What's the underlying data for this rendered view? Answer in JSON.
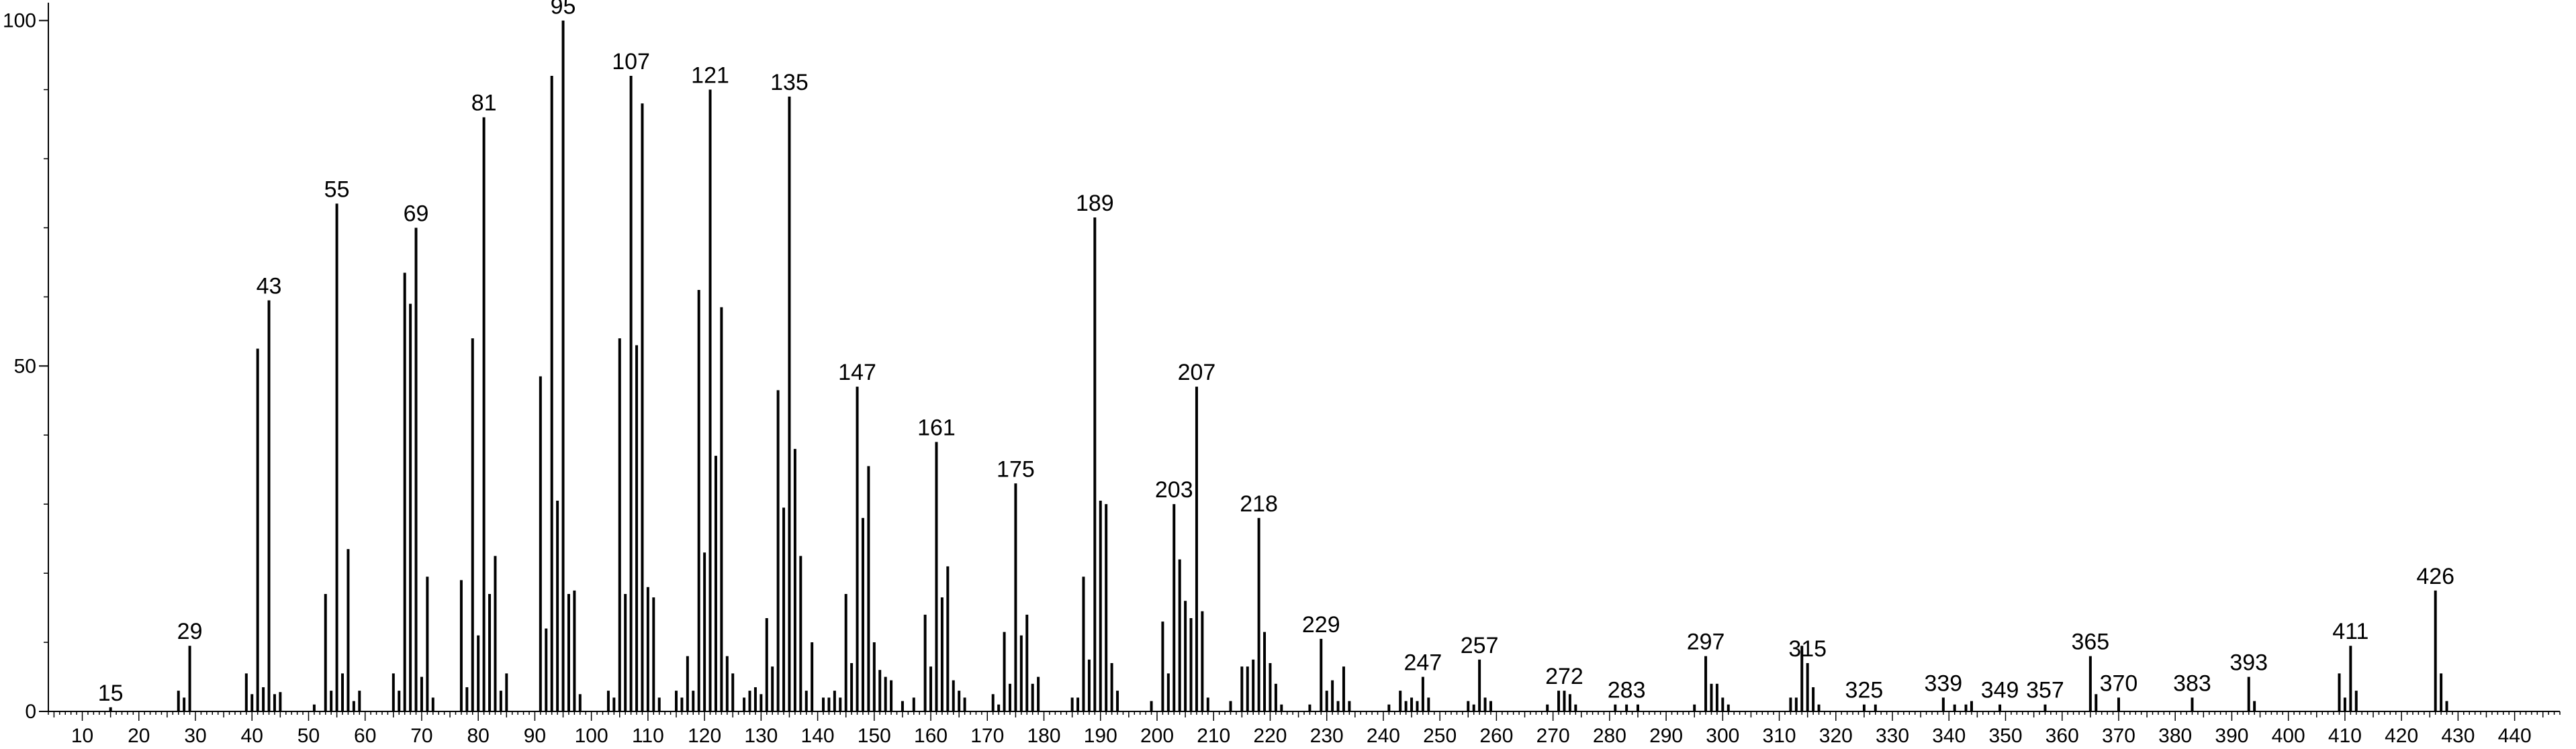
{
  "chart_data": {
    "type": "bar",
    "title": "",
    "xlabel": "",
    "ylabel": "",
    "xlim": [
      4,
      448
    ],
    "ylim": [
      0,
      102
    ],
    "x_ticks": [
      10,
      20,
      30,
      40,
      50,
      60,
      70,
      80,
      90,
      100,
      110,
      120,
      130,
      140,
      150,
      160,
      170,
      180,
      190,
      200,
      210,
      220,
      230,
      240,
      250,
      260,
      270,
      280,
      290,
      300,
      310,
      320,
      330,
      340,
      350,
      360,
      370,
      380,
      390,
      400,
      410,
      420,
      430,
      440
    ],
    "x_tick_labels": [
      "10",
      "20",
      "30",
      "40",
      "50",
      "60",
      "70",
      "80",
      "90",
      "100",
      "110",
      "120",
      "130",
      "140",
      "150",
      "160",
      "170",
      "180",
      "190",
      "200",
      "210",
      "220",
      "230",
      "240",
      "250",
      "260",
      "270",
      "280",
      "290",
      "300",
      "310",
      "320",
      "330",
      "340",
      "350",
      "360",
      "370",
      "380",
      "390",
      "400",
      "410",
      "420",
      "430",
      "440"
    ],
    "y_ticks": [
      0,
      50,
      100
    ],
    "y_tick_labels": [
      "0",
      "50",
      "100"
    ],
    "grid": false,
    "peaks": [
      {
        "x": 15,
        "y": 0.6
      },
      {
        "x": 27,
        "y": 3
      },
      {
        "x": 28,
        "y": 2
      },
      {
        "x": 29,
        "y": 9.5
      },
      {
        "x": 39,
        "y": 5.5
      },
      {
        "x": 40,
        "y": 2.5
      },
      {
        "x": 41,
        "y": 52.5
      },
      {
        "x": 42,
        "y": 3.5
      },
      {
        "x": 43,
        "y": 59.5
      },
      {
        "x": 44,
        "y": 2.5
      },
      {
        "x": 45,
        "y": 2.8
      },
      {
        "x": 51,
        "y": 1
      },
      {
        "x": 53,
        "y": 17
      },
      {
        "x": 54,
        "y": 3
      },
      {
        "x": 55,
        "y": 73.5
      },
      {
        "x": 56,
        "y": 5.5
      },
      {
        "x": 57,
        "y": 23.5
      },
      {
        "x": 58,
        "y": 1.5
      },
      {
        "x": 59,
        "y": 3
      },
      {
        "x": 65,
        "y": 5.5
      },
      {
        "x": 66,
        "y": 3
      },
      {
        "x": 67,
        "y": 63.5
      },
      {
        "x": 68,
        "y": 59
      },
      {
        "x": 69,
        "y": 70
      },
      {
        "x": 70,
        "y": 5
      },
      {
        "x": 71,
        "y": 19.5
      },
      {
        "x": 72,
        "y": 2
      },
      {
        "x": 77,
        "y": 19
      },
      {
        "x": 78,
        "y": 3.5
      },
      {
        "x": 79,
        "y": 54
      },
      {
        "x": 80,
        "y": 11
      },
      {
        "x": 81,
        "y": 86
      },
      {
        "x": 82,
        "y": 17
      },
      {
        "x": 83,
        "y": 22.5
      },
      {
        "x": 84,
        "y": 3
      },
      {
        "x": 85,
        "y": 5.5
      },
      {
        "x": 91,
        "y": 48.5
      },
      {
        "x": 92,
        "y": 12
      },
      {
        "x": 93,
        "y": 92
      },
      {
        "x": 94,
        "y": 30.5
      },
      {
        "x": 95,
        "y": 100
      },
      {
        "x": 96,
        "y": 17
      },
      {
        "x": 97,
        "y": 17.5
      },
      {
        "x": 98,
        "y": 2.5
      },
      {
        "x": 103,
        "y": 3
      },
      {
        "x": 104,
        "y": 2
      },
      {
        "x": 105,
        "y": 54
      },
      {
        "x": 106,
        "y": 17
      },
      {
        "x": 107,
        "y": 92
      },
      {
        "x": 108,
        "y": 53
      },
      {
        "x": 109,
        "y": 88
      },
      {
        "x": 110,
        "y": 18
      },
      {
        "x": 111,
        "y": 16.5
      },
      {
        "x": 112,
        "y": 2
      },
      {
        "x": 115,
        "y": 3
      },
      {
        "x": 116,
        "y": 2
      },
      {
        "x": 117,
        "y": 8
      },
      {
        "x": 118,
        "y": 3
      },
      {
        "x": 119,
        "y": 61
      },
      {
        "x": 120,
        "y": 23
      },
      {
        "x": 121,
        "y": 90
      },
      {
        "x": 122,
        "y": 37
      },
      {
        "x": 123,
        "y": 58.5
      },
      {
        "x": 124,
        "y": 8
      },
      {
        "x": 125,
        "y": 5.5
      },
      {
        "x": 127,
        "y": 2
      },
      {
        "x": 128,
        "y": 3
      },
      {
        "x": 129,
        "y": 3.5
      },
      {
        "x": 130,
        "y": 2.5
      },
      {
        "x": 131,
        "y": 13.5
      },
      {
        "x": 132,
        "y": 6.5
      },
      {
        "x": 133,
        "y": 46.5
      },
      {
        "x": 134,
        "y": 29.5
      },
      {
        "x": 135,
        "y": 89
      },
      {
        "x": 136,
        "y": 38
      },
      {
        "x": 137,
        "y": 22.5
      },
      {
        "x": 138,
        "y": 3
      },
      {
        "x": 139,
        "y": 10
      },
      {
        "x": 141,
        "y": 2
      },
      {
        "x": 142,
        "y": 2
      },
      {
        "x": 143,
        "y": 3
      },
      {
        "x": 144,
        "y": 2
      },
      {
        "x": 145,
        "y": 17
      },
      {
        "x": 146,
        "y": 7
      },
      {
        "x": 147,
        "y": 47
      },
      {
        "x": 148,
        "y": 28
      },
      {
        "x": 149,
        "y": 35.5
      },
      {
        "x": 150,
        "y": 10
      },
      {
        "x": 151,
        "y": 6
      },
      {
        "x": 152,
        "y": 5
      },
      {
        "x": 153,
        "y": 4.5
      },
      {
        "x": 155,
        "y": 1.5
      },
      {
        "x": 157,
        "y": 2
      },
      {
        "x": 159,
        "y": 14
      },
      {
        "x": 160,
        "y": 6.5
      },
      {
        "x": 161,
        "y": 39
      },
      {
        "x": 162,
        "y": 16.5
      },
      {
        "x": 163,
        "y": 21
      },
      {
        "x": 164,
        "y": 4.5
      },
      {
        "x": 165,
        "y": 3
      },
      {
        "x": 166,
        "y": 2
      },
      {
        "x": 171,
        "y": 2.5
      },
      {
        "x": 172,
        "y": 1
      },
      {
        "x": 173,
        "y": 11.5
      },
      {
        "x": 174,
        "y": 4
      },
      {
        "x": 175,
        "y": 33
      },
      {
        "x": 176,
        "y": 11
      },
      {
        "x": 177,
        "y": 14
      },
      {
        "x": 178,
        "y": 4
      },
      {
        "x": 179,
        "y": 5
      },
      {
        "x": 185,
        "y": 2
      },
      {
        "x": 186,
        "y": 2
      },
      {
        "x": 187,
        "y": 19.5
      },
      {
        "x": 188,
        "y": 7.5
      },
      {
        "x": 189,
        "y": 71.5
      },
      {
        "x": 190,
        "y": 30.5
      },
      {
        "x": 191,
        "y": 30
      },
      {
        "x": 192,
        "y": 7
      },
      {
        "x": 193,
        "y": 3
      },
      {
        "x": 199,
        "y": 1.5
      },
      {
        "x": 201,
        "y": 13
      },
      {
        "x": 202,
        "y": 5.5
      },
      {
        "x": 203,
        "y": 30
      },
      {
        "x": 204,
        "y": 22
      },
      {
        "x": 205,
        "y": 16
      },
      {
        "x": 206,
        "y": 13.5
      },
      {
        "x": 207,
        "y": 47
      },
      {
        "x": 208,
        "y": 14.5
      },
      {
        "x": 209,
        "y": 2
      },
      {
        "x": 213,
        "y": 1.5
      },
      {
        "x": 215,
        "y": 6.5
      },
      {
        "x": 216,
        "y": 6.5
      },
      {
        "x": 217,
        "y": 7.5
      },
      {
        "x": 218,
        "y": 28
      },
      {
        "x": 219,
        "y": 11.5
      },
      {
        "x": 220,
        "y": 7
      },
      {
        "x": 221,
        "y": 4
      },
      {
        "x": 222,
        "y": 1
      },
      {
        "x": 227,
        "y": 1
      },
      {
        "x": 229,
        "y": 10.5
      },
      {
        "x": 230,
        "y": 3
      },
      {
        "x": 231,
        "y": 4.5
      },
      {
        "x": 232,
        "y": 1.5
      },
      {
        "x": 233,
        "y": 6.5
      },
      {
        "x": 234,
        "y": 1.5
      },
      {
        "x": 241,
        "y": 1
      },
      {
        "x": 243,
        "y": 3
      },
      {
        "x": 244,
        "y": 1.5
      },
      {
        "x": 245,
        "y": 2
      },
      {
        "x": 246,
        "y": 1.5
      },
      {
        "x": 247,
        "y": 5
      },
      {
        "x": 248,
        "y": 2
      },
      {
        "x": 255,
        "y": 1.5
      },
      {
        "x": 256,
        "y": 1
      },
      {
        "x": 257,
        "y": 7.5
      },
      {
        "x": 258,
        "y": 2
      },
      {
        "x": 259,
        "y": 1.5
      },
      {
        "x": 269,
        "y": 1
      },
      {
        "x": 271,
        "y": 3
      },
      {
        "x": 272,
        "y": 3
      },
      {
        "x": 273,
        "y": 2.5
      },
      {
        "x": 274,
        "y": 1
      },
      {
        "x": 281,
        "y": 1
      },
      {
        "x": 283,
        "y": 1
      },
      {
        "x": 285,
        "y": 1
      },
      {
        "x": 295,
        "y": 1
      },
      {
        "x": 297,
        "y": 8
      },
      {
        "x": 298,
        "y": 4
      },
      {
        "x": 299,
        "y": 4
      },
      {
        "x": 300,
        "y": 2
      },
      {
        "x": 301,
        "y": 1
      },
      {
        "x": 312,
        "y": 2
      },
      {
        "x": 313,
        "y": 2
      },
      {
        "x": 314,
        "y": 9.5
      },
      {
        "x": 315,
        "y": 7
      },
      {
        "x": 316,
        "y": 3.5
      },
      {
        "x": 317,
        "y": 1
      },
      {
        "x": 325,
        "y": 1
      },
      {
        "x": 327,
        "y": 1
      },
      {
        "x": 339,
        "y": 2
      },
      {
        "x": 341,
        "y": 1
      },
      {
        "x": 343,
        "y": 1
      },
      {
        "x": 344,
        "y": 1.5
      },
      {
        "x": 349,
        "y": 1
      },
      {
        "x": 357,
        "y": 1
      },
      {
        "x": 365,
        "y": 8
      },
      {
        "x": 366,
        "y": 2.5
      },
      {
        "x": 370,
        "y": 2
      },
      {
        "x": 383,
        "y": 2
      },
      {
        "x": 393,
        "y": 5
      },
      {
        "x": 394,
        "y": 1.5
      },
      {
        "x": 409,
        "y": 5.5
      },
      {
        "x": 410,
        "y": 2
      },
      {
        "x": 411,
        "y": 9.5
      },
      {
        "x": 412,
        "y": 3
      },
      {
        "x": 426,
        "y": 17.5
      },
      {
        "x": 427,
        "y": 5.5
      },
      {
        "x": 428,
        "y": 1.5
      }
    ],
    "annotations": [
      {
        "x": 15,
        "label": "15"
      },
      {
        "x": 29,
        "label": "29"
      },
      {
        "x": 43,
        "label": "43"
      },
      {
        "x": 55,
        "label": "55"
      },
      {
        "x": 69,
        "label": "69"
      },
      {
        "x": 81,
        "label": "81"
      },
      {
        "x": 95,
        "label": "95"
      },
      {
        "x": 107,
        "label": "107"
      },
      {
        "x": 121,
        "label": "121"
      },
      {
        "x": 135,
        "label": "135"
      },
      {
        "x": 147,
        "label": "147"
      },
      {
        "x": 161,
        "label": "161"
      },
      {
        "x": 175,
        "label": "175"
      },
      {
        "x": 189,
        "label": "189"
      },
      {
        "x": 203,
        "label": "203"
      },
      {
        "x": 207,
        "label": "207"
      },
      {
        "x": 218,
        "label": "218"
      },
      {
        "x": 229,
        "label": "229"
      },
      {
        "x": 247,
        "label": "247"
      },
      {
        "x": 257,
        "label": "257"
      },
      {
        "x": 272,
        "label": "272"
      },
      {
        "x": 283,
        "label": "283"
      },
      {
        "x": 297,
        "label": "297"
      },
      {
        "x": 315,
        "label": "315"
      },
      {
        "x": 325,
        "label": "325"
      },
      {
        "x": 339,
        "label": "339"
      },
      {
        "x": 349,
        "label": "349"
      },
      {
        "x": 357,
        "label": "357"
      },
      {
        "x": 365,
        "label": "365"
      },
      {
        "x": 370,
        "label": "370"
      },
      {
        "x": 383,
        "label": "383"
      },
      {
        "x": 393,
        "label": "393"
      },
      {
        "x": 411,
        "label": "411"
      },
      {
        "x": 426,
        "label": "426"
      }
    ]
  }
}
